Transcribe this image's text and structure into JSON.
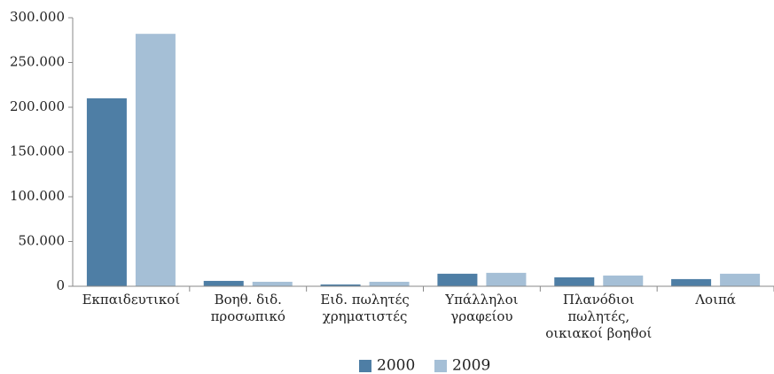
{
  "chart_data": {
    "type": "bar",
    "categories": [
      "Εκπαιδευτικοί",
      "Βοηθ. διδ.\nπροσωπικό",
      "Ειδ. πωλητές\nχρηματιστές",
      "Υπάλληλοι\nγραφείου",
      "Πλανόδιοι\nπωλητές,\nοικιακοί βοηθοί",
      "Λοιπά"
    ],
    "series": [
      {
        "name": "2000",
        "color": "#4e7ea5",
        "values": [
          210000,
          6000,
          2000,
          14000,
          10000,
          8000
        ]
      },
      {
        "name": "2009",
        "color": "#a5bfd6",
        "values": [
          282000,
          5000,
          5000,
          15000,
          12000,
          14000
        ]
      }
    ],
    "ylim": [
      0,
      300000
    ],
    "yticks": [
      0,
      {
        "value": 50000,
        "label": "50.000"
      },
      {
        "value": 100000,
        "label": "100.000"
      },
      {
        "value": 150000,
        "label": "150.000"
      },
      {
        "value": 200000,
        "label": "200.000"
      },
      {
        "value": 250000,
        "label": "250.000"
      },
      {
        "value": 300000,
        "label": "300.000"
      }
    ],
    "grid": false,
    "legend": "bottom"
  }
}
